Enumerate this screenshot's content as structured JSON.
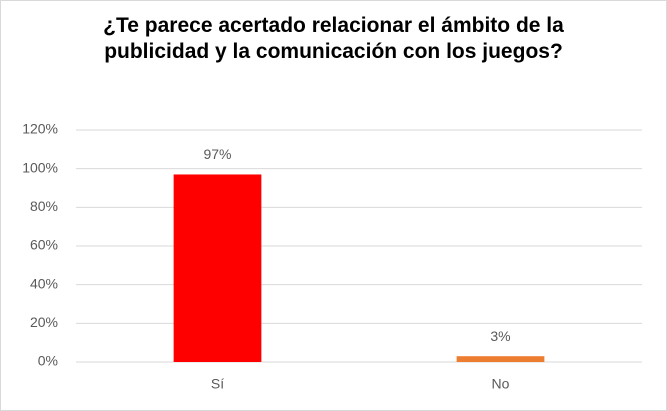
{
  "chart_data": {
    "type": "bar",
    "title": "¿Te parece acertado relacionar el ámbito de la publicidad y la comunicación con los juegos?",
    "categories": [
      "Sí",
      "No"
    ],
    "values": [
      97,
      3
    ],
    "value_labels": [
      "97%",
      "3%"
    ],
    "colors": [
      "#ff0000",
      "#ed7d31"
    ],
    "ylim": [
      0,
      120
    ],
    "yticks": [
      {
        "value": 0,
        "label": "0%"
      },
      {
        "value": 20,
        "label": "20%"
      },
      {
        "value": 40,
        "label": "40%"
      },
      {
        "value": 60,
        "label": "60%"
      },
      {
        "value": 80,
        "label": "80%"
      },
      {
        "value": 100,
        "label": "100%"
      },
      {
        "value": 120,
        "label": "120%"
      }
    ],
    "grid": true
  }
}
